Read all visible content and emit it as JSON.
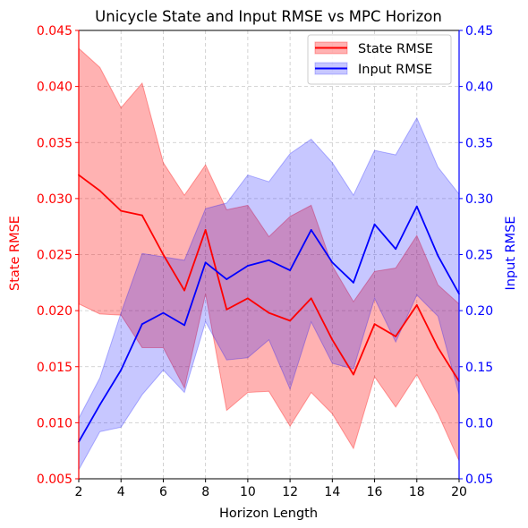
{
  "chart_data": {
    "type": "line",
    "title": "Unicycle State and Input RMSE vs MPC Horizon",
    "xlabel": "Horizon Length",
    "ylabel_left": "State RMSE",
    "ylabel_right": "Input RMSE",
    "x": [
      2,
      3,
      4,
      5,
      6,
      7,
      8,
      9,
      10,
      11,
      12,
      13,
      14,
      15,
      16,
      17,
      18,
      19,
      20
    ],
    "xlim": [
      2,
      20
    ],
    "x_ticks": [
      "2",
      "4",
      "6",
      "8",
      "10",
      "12",
      "14",
      "16",
      "18",
      "20"
    ],
    "ylim_left": [
      0.005,
      0.045
    ],
    "y_ticks_left": [
      "0.005",
      "0.010",
      "0.015",
      "0.020",
      "0.025",
      "0.030",
      "0.035",
      "0.040",
      "0.045"
    ],
    "ylim_right": [
      0.05,
      0.45
    ],
    "y_ticks_right": [
      "0.05",
      "0.10",
      "0.15",
      "0.20",
      "0.25",
      "0.30",
      "0.35",
      "0.40",
      "0.45"
    ],
    "grid": true,
    "legend_position": "top-right",
    "series": [
      {
        "name": "State RMSE",
        "axis": "left",
        "color": "#ff0000",
        "band_color": "#ff0000",
        "values": [
          0.0321,
          0.0307,
          0.0289,
          0.0285,
          0.025,
          0.0218,
          0.0272,
          0.0201,
          0.0211,
          0.0198,
          0.0191,
          0.0211,
          0.0174,
          0.0143,
          0.0188,
          0.0177,
          0.0205,
          0.0167,
          0.0137
        ],
        "lower": [
          0.0206,
          0.0197,
          0.0196,
          0.0167,
          0.0167,
          0.0131,
          0.0215,
          0.0111,
          0.0127,
          0.0128,
          0.0097,
          0.0127,
          0.0108,
          0.0077,
          0.0141,
          0.0114,
          0.0143,
          0.0108,
          0.0066
        ],
        "upper": [
          0.0434,
          0.0417,
          0.0381,
          0.0403,
          0.0332,
          0.0303,
          0.033,
          0.029,
          0.0294,
          0.0266,
          0.0284,
          0.0294,
          0.024,
          0.0208,
          0.0235,
          0.0238,
          0.0267,
          0.0223,
          0.0206
        ]
      },
      {
        "name": "Input RMSE",
        "axis": "right",
        "color": "#0000ff",
        "band_color": "#0000ff",
        "values": [
          0.083,
          0.116,
          0.147,
          0.188,
          0.198,
          0.187,
          0.243,
          0.228,
          0.24,
          0.245,
          0.236,
          0.272,
          0.243,
          0.225,
          0.277,
          0.255,
          0.293,
          0.249,
          0.215
        ],
        "lower": [
          0.058,
          0.092,
          0.096,
          0.125,
          0.147,
          0.127,
          0.19,
          0.156,
          0.158,
          0.174,
          0.13,
          0.19,
          0.153,
          0.148,
          0.211,
          0.172,
          0.214,
          0.195,
          0.125
        ],
        "upper": [
          0.104,
          0.14,
          0.198,
          0.251,
          0.248,
          0.245,
          0.291,
          0.296,
          0.321,
          0.315,
          0.34,
          0.353,
          0.332,
          0.303,
          0.343,
          0.339,
          0.372,
          0.328,
          0.304
        ]
      }
    ]
  }
}
